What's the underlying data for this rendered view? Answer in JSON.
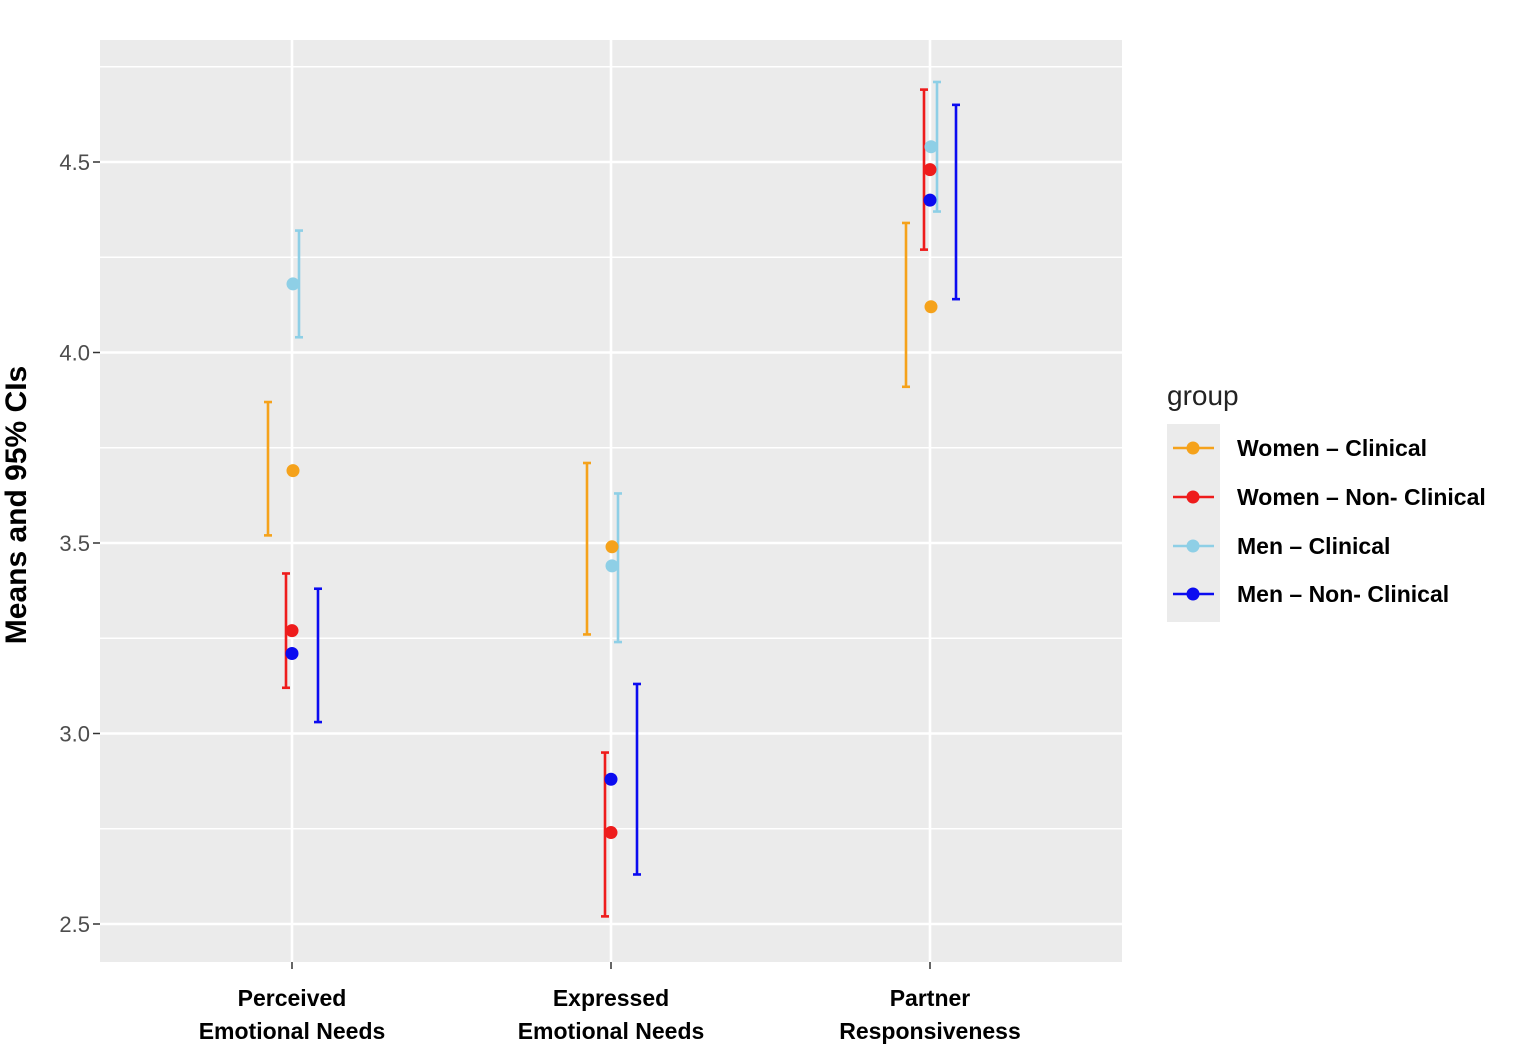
{
  "chart_data": {
    "type": "scatter",
    "subtype": "point-with-error-bars",
    "ylabel": "Means and 95% CIs",
    "xlabel": "",
    "ylim": [
      2.4,
      4.82
    ],
    "y_ticks": [
      "2.5",
      "3.0",
      "3.5",
      "4.0",
      "4.5"
    ],
    "y_tick_values": [
      2.5,
      3.0,
      3.5,
      4.0,
      4.5
    ],
    "categories": [
      [
        "Perceived",
        "Emotional Needs"
      ],
      [
        "Expressed",
        "Emotional Needs"
      ],
      [
        "Partner",
        "Responsiveness"
      ]
    ],
    "grid": true,
    "background": "#ebebeb",
    "legend": {
      "title": "group",
      "position": "right"
    },
    "series": [
      {
        "name": "Women – Clinical",
        "color": "#f5a21b",
        "mean": [
          3.69,
          3.49,
          4.12
        ],
        "lower": [
          3.52,
          3.26,
          3.91
        ],
        "upper": [
          3.87,
          3.71,
          4.34
        ]
      },
      {
        "name": "Women – Non- Clinical",
        "color": "#ee1c1c",
        "mean": [
          3.27,
          2.74,
          4.48
        ],
        "lower": [
          3.12,
          2.52,
          4.27
        ],
        "upper": [
          3.42,
          2.95,
          4.69
        ]
      },
      {
        "name": "Men – Clinical",
        "color": "#8ecfe6",
        "mean": [
          4.18,
          3.44,
          4.54
        ],
        "lower": [
          4.04,
          3.24,
          4.37
        ],
        "upper": [
          4.32,
          3.63,
          4.71
        ]
      },
      {
        "name": "Men – Non- Clinical",
        "color": "#0b0bf0",
        "mean": [
          3.21,
          2.88,
          4.4
        ],
        "lower": [
          3.03,
          2.63,
          4.14
        ],
        "upper": [
          3.38,
          3.13,
          4.65
        ]
      }
    ]
  }
}
